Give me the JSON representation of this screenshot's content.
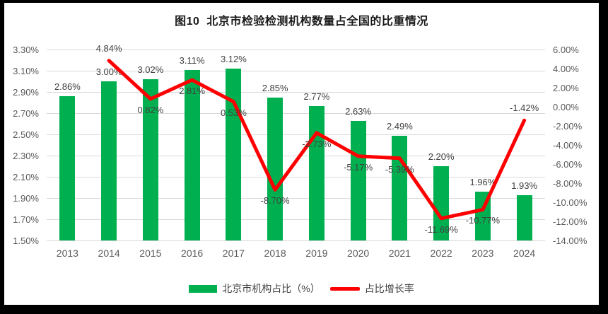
{
  "title": "图10  北京市检验检测机构数量占全国的比重情况",
  "legend": {
    "bar_label": "北京市机构占比（%）",
    "line_label": "占比增长率"
  },
  "colors": {
    "bar": "#00B050",
    "line": "#FE0000",
    "gridline": "#d9d9d9",
    "tick_text": "#595959",
    "label_text": "#404040"
  },
  "chart_data": {
    "type": "bar+line combo",
    "title": "图10  北京市检验检测机构数量占全国的比重情况",
    "categories": [
      "2013",
      "2014",
      "2015",
      "2016",
      "2017",
      "2018",
      "2019",
      "2020",
      "2021",
      "2022",
      "2023",
      "2024"
    ],
    "grid": true,
    "legend_position": "bottom",
    "left_axis": {
      "min": 1.5,
      "max": 3.3,
      "step": 0.2,
      "ticks": [
        "3.30%",
        "3.10%",
        "2.90%",
        "2.70%",
        "2.50%",
        "2.30%",
        "2.10%",
        "1.90%",
        "1.70%",
        "1.50%"
      ]
    },
    "right_axis": {
      "min": -14,
      "max": 6,
      "step": 2,
      "ticks": [
        "6.00%",
        "4.00%",
        "2.00%",
        "0.00%",
        "-2.00%",
        "-4.00%",
        "-6.00%",
        "-8.00%",
        "-10.00%",
        "-12.00%",
        "-14.00%"
      ]
    },
    "series": [
      {
        "name": "北京市机构占比（%）",
        "type": "bar",
        "axis": "left",
        "color": "#00B050",
        "values": [
          2.86,
          3.0,
          3.02,
          3.11,
          3.12,
          2.85,
          2.77,
          2.63,
          2.49,
          2.2,
          1.96,
          1.93
        ],
        "labels": [
          "2.86%",
          "3.00%",
          "3.02%",
          "3.11%",
          "3.12%",
          "2.85%",
          "2.77%",
          "2.63%",
          "2.49%",
          "2.20%",
          "1.96%",
          "1.93%"
        ]
      },
      {
        "name": "占比增长率",
        "type": "line",
        "axis": "right",
        "color": "#FE0000",
        "values": [
          null,
          4.84,
          0.82,
          2.81,
          0.53,
          -8.7,
          -2.73,
          -5.17,
          -5.39,
          -11.69,
          -10.77,
          -1.42
        ],
        "labels": [
          null,
          "4.84%",
          "0.82%",
          "2.81%",
          "0.53%",
          "-8.70%",
          "-2.73%",
          "-5.17%",
          "-5.39%",
          "-11.69%",
          "-10.77%",
          "-1.42%"
        ],
        "label_positions": [
          null,
          "above",
          "below",
          "below",
          "below",
          "below",
          "below",
          "below",
          "below",
          "below",
          "below",
          "above"
        ]
      }
    ]
  }
}
